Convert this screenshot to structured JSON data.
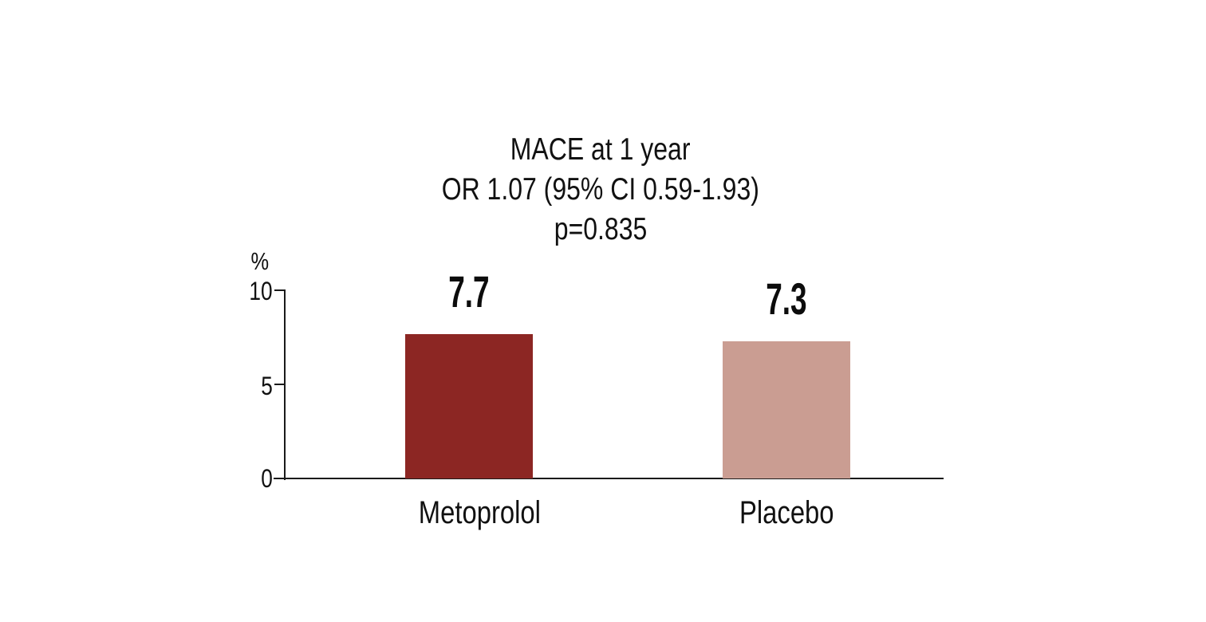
{
  "chart_data": {
    "type": "bar",
    "title": "MACE at 1 year",
    "subtitle": "OR 1.07 (95% CI 0.59-1.93)",
    "p_value_text": "p=0.835",
    "categories": [
      "Metoprolol",
      "Placebo"
    ],
    "values": [
      7.7,
      7.3
    ],
    "data_labels": [
      "7.7",
      "7.3"
    ],
    "ylabel": "%",
    "ylim": [
      0,
      10
    ],
    "ytick_labels": [
      "10",
      "5",
      "0"
    ],
    "ytick_values": [
      10,
      5,
      0
    ],
    "bar_colors": [
      "#8C2623",
      "#CA9D92"
    ],
    "axis_color": "#1a1a1a",
    "grid": false,
    "legend": "none",
    "background": "#ffffff"
  }
}
